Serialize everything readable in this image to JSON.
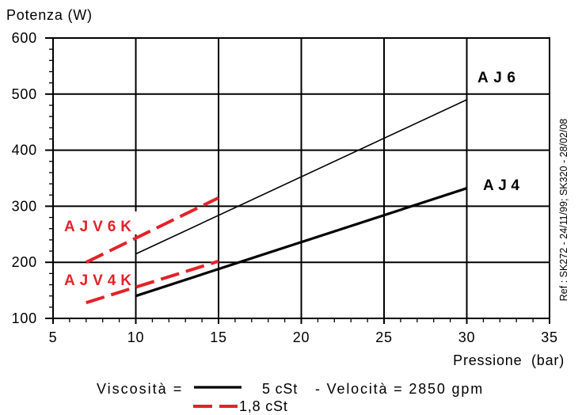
{
  "chart_data": {
    "type": "line",
    "ylabel": "Potenza (W)",
    "xlabel": "Pressione  (bar)",
    "xlim": [
      5,
      35
    ],
    "ylim": [
      100,
      600
    ],
    "xticks": [
      5,
      10,
      15,
      20,
      25,
      30,
      35
    ],
    "yticks": [
      100,
      200,
      300,
      400,
      500,
      600
    ],
    "x_minor_step": 1,
    "y_minor_step": 20,
    "grid": true,
    "series": [
      {
        "name": "AJ6",
        "x": [
          10,
          30
        ],
        "y": [
          215,
          490
        ],
        "color": "#000000",
        "line_style": "solid",
        "line_weight": "thin"
      },
      {
        "name": "AJ4",
        "x": [
          10,
          30
        ],
        "y": [
          140,
          332
        ],
        "color": "#000000",
        "line_style": "solid",
        "line_weight": "thick"
      },
      {
        "name": "AJV6K",
        "x": [
          7,
          15
        ],
        "y": [
          200,
          315
        ],
        "color": "#e42228",
        "line_style": "dashed",
        "line_weight": "thick"
      },
      {
        "name": "AJV4K",
        "x": [
          7,
          15
        ],
        "y": [
          128,
          202
        ],
        "color": "#e42228",
        "line_style": "dashed",
        "line_weight": "thick"
      }
    ],
    "legend": {
      "title": "Viscosità =",
      "entries": [
        {
          "label": "5 cSt",
          "color": "#000000",
          "line_style": "solid"
        },
        {
          "label": "1,8 cSt",
          "color": "#e42228",
          "line_style": "dashed"
        }
      ],
      "note": "- Velocità = 2850 gpm",
      "placement": "bottom"
    },
    "annotation": "Ref : SK272 - 24/11/99; SK320 - 28/02/08"
  }
}
